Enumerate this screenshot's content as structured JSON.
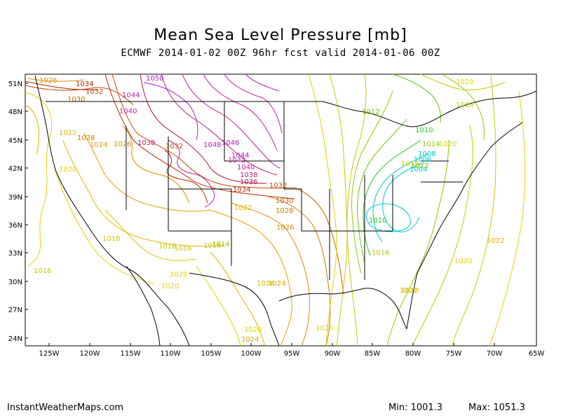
{
  "title": "Mean Sea Level Pressure [mb]",
  "subtitle": "ECMWF 2014-01-02 00Z 96hr fcst valid 2014-01-06 00Z",
  "footer": {
    "site": "InstantWeatherMaps.com",
    "min_label": "Min: 1001.3",
    "max_label": "Max: 1051.3"
  },
  "map": {
    "lat_ticks": [
      "51N",
      "48N",
      "45N",
      "42N",
      "39N",
      "36N",
      "33N",
      "30N",
      "27N",
      "24N"
    ],
    "lon_ticks": [
      "125W",
      "120W",
      "115W",
      "110W",
      "105W",
      "100W",
      "95W",
      "90W",
      "85W",
      "80W",
      "75W",
      "70W",
      "65W"
    ],
    "contour_colors": {
      "1004": "#00c8dc",
      "1006": "#00c8dc",
      "1008": "#00c8c8",
      "1010": "#28c828",
      "1012": "#64c800",
      "1014": "#96c800",
      "1016": "#c8c800",
      "1018": "#d2c800",
      "1020": "#e6d200",
      "1022": "#e6b400",
      "1024": "#e6a000",
      "1026": "#dc8c00",
      "1028": "#d27800",
      "1030": "#c86400",
      "1032": "#c84600",
      "1034": "#b42800",
      "1036": "#b41450",
      "1038": "#be1e78",
      "1040": "#c81e96",
      "1042": "#c81eaa",
      "1044": "#be1eb4",
      "1046": "#b41ebe",
      "1050": "#aa1ec8"
    },
    "contour_labels": [
      {
        "text": "1026",
        "c": "1026"
      },
      {
        "text": "1034",
        "c": "1034"
      },
      {
        "text": "1032",
        "c": "1032"
      },
      {
        "text": "1030",
        "c": "1030"
      },
      {
        "text": "1044",
        "c": "1044"
      },
      {
        "text": "1050",
        "c": "1050"
      },
      {
        "text": "1040",
        "c": "1040"
      },
      {
        "text": "1022",
        "c": "1022"
      },
      {
        "text": "1028",
        "c": "1028"
      },
      {
        "text": "1024",
        "c": "1024"
      },
      {
        "text": "1026",
        "c": "1026"
      },
      {
        "text": "1038",
        "c": "1038"
      },
      {
        "text": "1032",
        "c": "1032"
      },
      {
        "text": "1048",
        "c": "1046"
      },
      {
        "text": "1046",
        "c": "1046"
      },
      {
        "text": "1044",
        "c": "1044"
      },
      {
        "text": "1042",
        "c": "1042"
      },
      {
        "text": "1040",
        "c": "1040"
      },
      {
        "text": "1038",
        "c": "1038"
      },
      {
        "text": "1036",
        "c": "1036"
      },
      {
        "text": "1034",
        "c": "1034"
      },
      {
        "text": "1032",
        "c": "1032"
      },
      {
        "text": "1030",
        "c": "1030"
      },
      {
        "text": "1028",
        "c": "1028"
      },
      {
        "text": "1026",
        "c": "1026"
      },
      {
        "text": "1024",
        "c": "1024"
      },
      {
        "text": "1022",
        "c": "1022"
      },
      {
        "text": "1020",
        "c": "1020"
      },
      {
        "text": "1018",
        "c": "1018"
      },
      {
        "text": "1016",
        "c": "1016"
      },
      {
        "text": "1020",
        "c": "1020"
      },
      {
        "text": "1018",
        "c": "1018"
      },
      {
        "text": "1016",
        "c": "1016"
      },
      {
        "text": "1014",
        "c": "1014"
      },
      {
        "text": "1012",
        "c": "1012"
      },
      {
        "text": "1010",
        "c": "1010"
      },
      {
        "text": "1008",
        "c": "1008"
      },
      {
        "text": "1006",
        "c": "1006"
      },
      {
        "text": "1004",
        "c": "1004"
      },
      {
        "text": "1012",
        "c": "1012"
      },
      {
        "text": "1010",
        "c": "1010"
      },
      {
        "text": "1014",
        "c": "1014"
      },
      {
        "text": "1016",
        "c": "1016"
      },
      {
        "text": "1018",
        "c": "1018"
      },
      {
        "text": "1020",
        "c": "1020"
      },
      {
        "text": "1016",
        "c": "1016"
      },
      {
        "text": "1022",
        "c": "1022"
      },
      {
        "text": "1020",
        "c": "1020"
      },
      {
        "text": "1018",
        "c": "1018"
      },
      {
        "text": "1016",
        "c": "1016"
      },
      {
        "text": "1020",
        "c": "1020"
      },
      {
        "text": "1024",
        "c": "1024"
      },
      {
        "text": "1020",
        "c": "1020"
      },
      {
        "text": "1016",
        "c": "1016"
      },
      {
        "text": "1020",
        "c": "1020"
      },
      {
        "text": "1022",
        "c": "1022"
      },
      {
        "text": "1020",
        "c": "1020"
      }
    ]
  }
}
